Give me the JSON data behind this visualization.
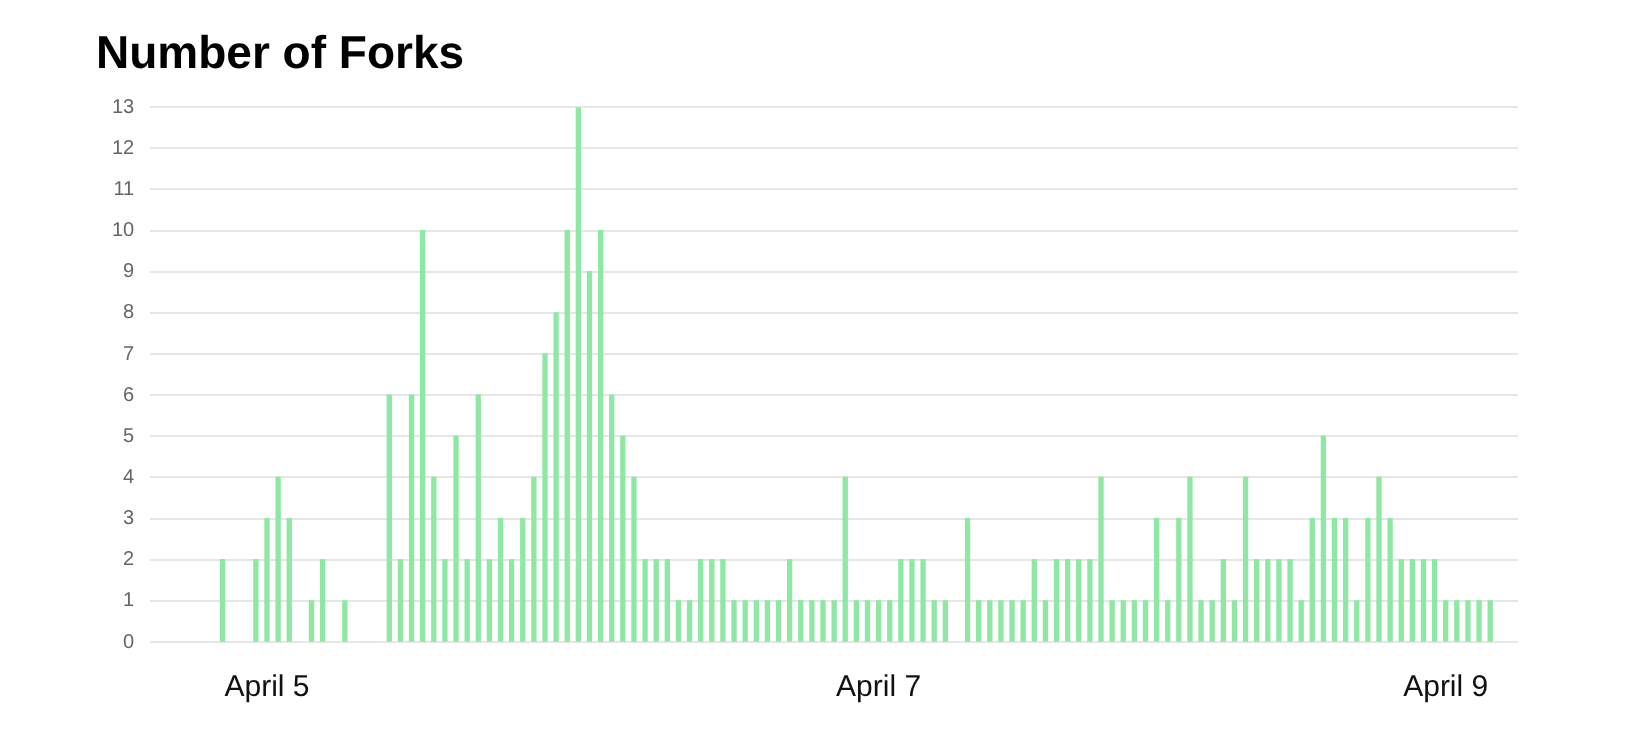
{
  "chart_data": {
    "type": "bar",
    "title": "Number of Forks",
    "categories": [
      null,
      null,
      null,
      null,
      null,
      null,
      null,
      null,
      null,
      null,
      "April 5",
      null,
      null,
      null,
      null,
      null,
      null,
      null,
      null,
      null,
      null,
      null,
      null,
      null,
      null,
      null,
      null,
      null,
      null,
      null,
      null,
      null,
      null,
      null,
      null,
      null,
      null,
      null,
      null,
      null,
      null,
      null,
      null,
      null,
      null,
      null,
      null,
      null,
      null,
      null,
      null,
      null,
      null,
      null,
      null,
      null,
      null,
      null,
      null,
      null,
      null,
      null,
      null,
      null,
      null,
      "April 7",
      null,
      null,
      null,
      null,
      null,
      null,
      null,
      null,
      null,
      null,
      null,
      null,
      null,
      null,
      null,
      null,
      null,
      null,
      null,
      null,
      null,
      null,
      null,
      null,
      null,
      null,
      null,
      null,
      null,
      null,
      null,
      null,
      null,
      null,
      null,
      null,
      null,
      null,
      null,
      null,
      null,
      null,
      null,
      null,
      null,
      null,
      null,
      null,
      null,
      null,
      "April 9",
      null,
      null,
      null,
      null,
      null,
      null
    ],
    "values": [
      null,
      null,
      null,
      null,
      null,
      null,
      2,
      null,
      null,
      2,
      3,
      4,
      3,
      null,
      1,
      2,
      null,
      1,
      null,
      null,
      null,
      6,
      2,
      6,
      10,
      4,
      2,
      5,
      2,
      6,
      2,
      3,
      2,
      3,
      4,
      7,
      8,
      10,
      13,
      9,
      10,
      6,
      5,
      4,
      2,
      2,
      2,
      1,
      1,
      2,
      2,
      2,
      1,
      1,
      1,
      1,
      1,
      2,
      1,
      1,
      1,
      1,
      4,
      1,
      1,
      1,
      1,
      2,
      2,
      2,
      1,
      1,
      null,
      3,
      1,
      1,
      1,
      1,
      1,
      2,
      1,
      2,
      2,
      2,
      2,
      4,
      1,
      1,
      1,
      1,
      3,
      1,
      3,
      4,
      1,
      1,
      2,
      1,
      4,
      2,
      2,
      2,
      2,
      1,
      3,
      5,
      3,
      3,
      1,
      3,
      4,
      3,
      2,
      2,
      2,
      2,
      1,
      1,
      1,
      1,
      1,
      null,
      null
    ],
    "color": "#8ee8a4",
    "ylim": [
      0,
      13
    ],
    "yticks": [
      0,
      1,
      2,
      3,
      4,
      5,
      6,
      7,
      8,
      9,
      10,
      11,
      12,
      13
    ],
    "grid": "y"
  }
}
